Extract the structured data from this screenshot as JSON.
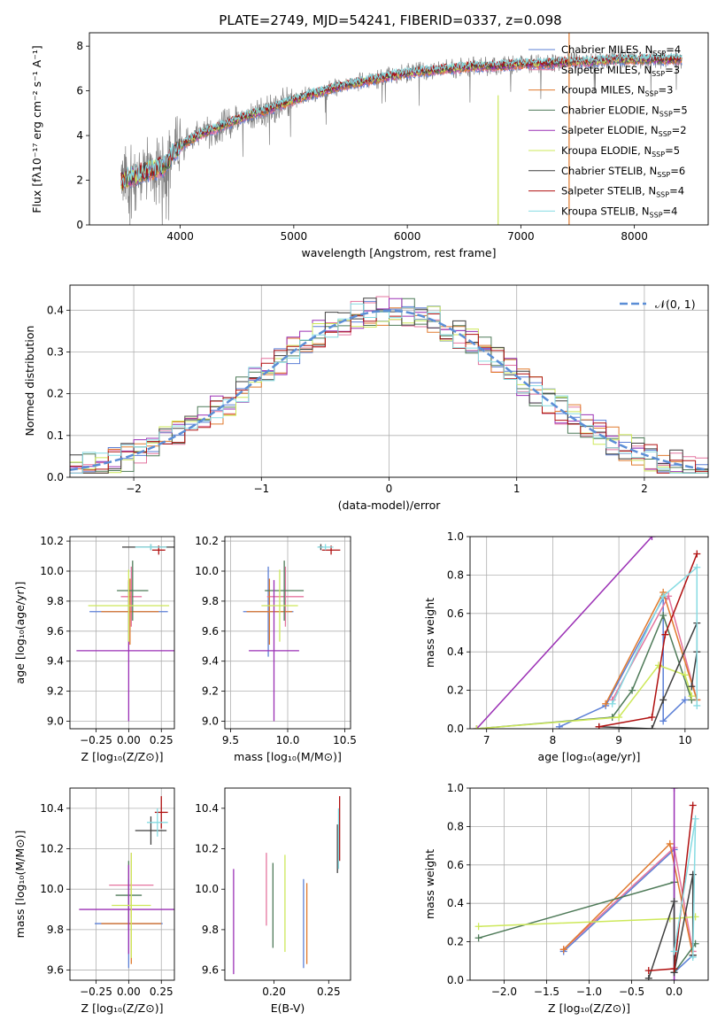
{
  "figure": {
    "title": "PLATE=2749, MJD=54241, FIBERID=0337, z=0.098"
  },
  "colors": {
    "Chabrier MILES": "#5b7fd6",
    "Salpeter MILES": "#e4759f",
    "Kroupa MILES": "#e07a2e",
    "Chabrier ELODIE": "#4e7a58",
    "Salpeter ELODIE": "#9b30b5",
    "Kroupa ELODIE": "#cde85a",
    "Chabrier STELIB": "#3f3f3f",
    "Salpeter STELIB": "#b01010",
    "Kroupa STELIB": "#86dbe2"
  },
  "chart_data": [
    {
      "type": "line",
      "title": "PLATE=2749, MJD=54241, FIBERID=0337, z=0.098",
      "xlabel": "wavelength [Angstrom, rest frame]",
      "ylabel": "Flux [fλ10⁻¹⁷ erg cm⁻² s⁻¹ A⁻¹]",
      "xlim": [
        3200,
        8650
      ],
      "ylim": [
        0,
        8.6
      ],
      "xticks": [
        4000,
        5000,
        6000,
        7000,
        8000
      ],
      "yticks": [
        0,
        2,
        4,
        6,
        8
      ],
      "legend_position": "right",
      "data_color": "#808080",
      "data_continuum": {
        "x": [
          3480,
          3550,
          3700,
          3850,
          3950,
          4050,
          4200,
          4400,
          4600,
          4800,
          5000,
          5200,
          5400,
          5600,
          5800,
          6000,
          6200,
          6400,
          6600,
          6800,
          7000,
          7200,
          7400,
          7600,
          7800,
          8000,
          8200,
          8400
        ],
        "y": [
          1.9,
          2.1,
          2.4,
          2.6,
          3.3,
          3.7,
          4.1,
          4.5,
          4.9,
          5.2,
          5.6,
          5.9,
          6.2,
          6.4,
          6.6,
          6.8,
          6.9,
          7.0,
          7.1,
          7.1,
          7.2,
          7.2,
          7.3,
          7.3,
          7.4,
          7.4,
          7.4,
          7.4
        ]
      },
      "series": [
        {
          "name": "Chabrier MILES, N_SSP=4",
          "legend_main": "Chabrier MILES, N",
          "legend_sub": "SSP",
          "legend_tail": "=4"
        },
        {
          "name": "Salpeter MILES, N_SSP=3",
          "legend_main": "Salpeter MILES, N",
          "legend_sub": "SSP",
          "legend_tail": "=3"
        },
        {
          "name": "Kroupa MILES, N_SSP=3",
          "legend_main": "Kroupa MILES, N",
          "legend_sub": "SSP",
          "legend_tail": "=3"
        },
        {
          "name": "Chabrier ELODIE, N_SSP=5",
          "legend_main": "Chabrier ELODIE, N",
          "legend_sub": "SSP",
          "legend_tail": "=5"
        },
        {
          "name": "Salpeter ELODIE, N_SSP=2",
          "legend_main": "Salpeter ELODIE, N",
          "legend_sub": "SSP",
          "legend_tail": "=2"
        },
        {
          "name": "Kroupa ELODIE, N_SSP=5",
          "legend_main": "Kroupa ELODIE, N",
          "legend_sub": "SSP",
          "legend_tail": "=5"
        },
        {
          "name": "Chabrier STELIB, N_SSP=6",
          "legend_main": "Chabrier STELIB, N",
          "legend_sub": "SSP",
          "legend_tail": "=6"
        },
        {
          "name": "Salpeter STELIB, N_SSP=4",
          "legend_main": "Salpeter STELIB, N",
          "legend_sub": "SSP",
          "legend_tail": "=4"
        },
        {
          "name": "Kroupa STELIB, N_SSP=4",
          "legend_main": "Kroupa STELIB, N",
          "legend_sub": "SSP",
          "legend_tail": "=4"
        }
      ]
    },
    {
      "type": "histogram",
      "xlabel": "(data-model)/error",
      "ylabel": "Normed distribution",
      "xlim": [
        -2.5,
        2.5
      ],
      "ylim": [
        0,
        0.46
      ],
      "xticks": [
        -2,
        -1,
        0,
        1,
        2
      ],
      "xticklabels": [
        "−2",
        "−1",
        "0",
        "1",
        "2"
      ],
      "yticks": [
        0,
        0.1,
        0.2,
        0.3,
        0.4
      ],
      "yticklabels": [
        "0.0",
        "0.1",
        "0.2",
        "0.3",
        "0.4"
      ],
      "grid": true,
      "reference_curve": {
        "label": "𝒩(0, 1)",
        "color": "#5b8ed6",
        "mu": 0,
        "sigma": 1
      },
      "bin_width": 0.1,
      "legend_position": "top-right"
    },
    {
      "type": "errorbar",
      "xlabel": "Z [log₁₀(Z/Z⊙)]",
      "ylabel": "age  [log₁₀(age/yr)]",
      "xlim": [
        -0.45,
        0.35
      ],
      "ylim": [
        8.95,
        10.23
      ],
      "xticks": [
        -0.25,
        0,
        0.25
      ],
      "xticklabels": [
        "−0.25",
        "0.00",
        "0.25"
      ],
      "yticks": [
        9.0,
        9.2,
        9.4,
        9.6,
        9.8,
        10.0,
        10.2
      ],
      "yticklabels": [
        "9.0",
        "9.2",
        "9.4",
        "9.6",
        "9.8",
        "10.0",
        "10.2"
      ],
      "grid": true,
      "points": [
        {
          "series": "Chabrier MILES",
          "x": 0.0,
          "xerr": 0.3,
          "y": 9.73,
          "yerr": 0.2
        },
        {
          "series": "Salpeter MILES",
          "x": 0.02,
          "xerr": 0.08,
          "y": 9.83,
          "yerr": 0.2
        },
        {
          "series": "Kroupa MILES",
          "x": 0.01,
          "xerr": 0.22,
          "y": 9.73,
          "yerr": 0.22
        },
        {
          "series": "Chabrier ELODIE",
          "x": 0.03,
          "xerr": 0.12,
          "y": 9.87,
          "yerr": 0.2
        },
        {
          "series": "Salpeter ELODIE",
          "x": 0.0,
          "xerr": 0.4,
          "y": 9.47,
          "yerr": 0.47
        },
        {
          "series": "Kroupa ELODIE",
          "x": 0.0,
          "xerr": 0.31,
          "y": 9.77,
          "yerr": 0.24
        },
        {
          "series": "Chabrier STELIB",
          "x": 0.17,
          "xerr": 0.22,
          "y": 10.16,
          "yerr": 0.02
        },
        {
          "series": "Salpeter STELIB",
          "x": 0.23,
          "xerr": 0.05,
          "y": 10.14,
          "yerr": 0.03
        },
        {
          "series": "Kroupa STELIB",
          "x": 0.17,
          "xerr": 0.12,
          "y": 10.16,
          "yerr": 0.02
        }
      ]
    },
    {
      "type": "errorbar",
      "xlabel": "mass [log₁₀(M/M⊙)]",
      "ylabel": "",
      "xlim": [
        9.45,
        10.55
      ],
      "ylim": [
        8.95,
        10.23
      ],
      "xticks": [
        9.5,
        10.0,
        10.5
      ],
      "xticklabels": [
        "9.5",
        "10.0",
        "10.5"
      ],
      "yticks": [
        9.0,
        9.2,
        9.4,
        9.6,
        9.8,
        10.0,
        10.2
      ],
      "yticklabels": [
        "9.0",
        "9.2",
        "9.4",
        "9.6",
        "9.8",
        "10.0",
        "10.2"
      ],
      "grid": true,
      "points": [
        {
          "series": "Chabrier MILES",
          "x": 9.83,
          "xerr": 0.22,
          "y": 9.73,
          "yerr": 0.3
        },
        {
          "series": "Salpeter MILES",
          "x": 9.98,
          "xerr": 0.16,
          "y": 9.83,
          "yerr": 0.2
        },
        {
          "series": "Kroupa MILES",
          "x": 9.84,
          "xerr": 0.2,
          "y": 9.73,
          "yerr": 0.22
        },
        {
          "series": "Chabrier ELODIE",
          "x": 9.97,
          "xerr": 0.17,
          "y": 9.87,
          "yerr": 0.2
        },
        {
          "series": "Salpeter ELODIE",
          "x": 9.88,
          "xerr": 0.22,
          "y": 9.47,
          "yerr": 0.47
        },
        {
          "series": "Kroupa ELODIE",
          "x": 9.93,
          "xerr": 0.16,
          "y": 9.77,
          "yerr": 0.24
        },
        {
          "series": "Chabrier STELIB",
          "x": 10.29,
          "xerr": 0.02,
          "y": 10.16,
          "yerr": 0.02
        },
        {
          "series": "Salpeter STELIB",
          "x": 10.38,
          "xerr": 0.08,
          "y": 10.14,
          "yerr": 0.03
        },
        {
          "series": "Kroupa STELIB",
          "x": 10.33,
          "xerr": 0.07,
          "y": 10.16,
          "yerr": 0.02
        }
      ]
    },
    {
      "type": "line",
      "xlabel": "age  [log₁₀(age/yr)]",
      "ylabel": "mass weight",
      "xlim": [
        6.75,
        10.35
      ],
      "ylim": [
        0,
        1.0
      ],
      "xticks": [
        7,
        8,
        9,
        10
      ],
      "xticklabels": [
        "7",
        "8",
        "9",
        "10"
      ],
      "yticks": [
        0,
        0.2,
        0.4,
        0.6,
        0.8,
        1.0
      ],
      "yticklabels": [
        "0.0",
        "0.2",
        "0.4",
        "0.6",
        "0.8",
        "1.0"
      ],
      "grid": true,
      "series": [
        {
          "name": "Chabrier MILES",
          "points": [
            [
              8.1,
              0.01
            ],
            [
              8.8,
              0.12
            ],
            [
              9.67,
              0.68
            ],
            [
              9.67,
              0.04
            ],
            [
              10.0,
              0.15
            ]
          ]
        },
        {
          "name": "Salpeter MILES",
          "points": [
            [
              8.9,
              0.15
            ],
            [
              9.75,
              0.69
            ],
            [
              10.18,
              0.15
            ]
          ]
        },
        {
          "name": "Kroupa MILES",
          "points": [
            [
              8.8,
              0.13
            ],
            [
              9.67,
              0.71
            ],
            [
              10.18,
              0.15
            ]
          ]
        },
        {
          "name": "Chabrier ELODIE",
          "points": [
            [
              6.85,
              0.0
            ],
            [
              8.9,
              0.06
            ],
            [
              9.2,
              0.2
            ],
            [
              9.67,
              0.59
            ],
            [
              10.1,
              0.15
            ]
          ]
        },
        {
          "name": "Salpeter ELODIE",
          "points": [
            [
              6.85,
              0.0
            ],
            [
              9.5,
              1.0
            ]
          ]
        },
        {
          "name": "Kroupa ELODIE",
          "points": [
            [
              6.85,
              0.0
            ],
            [
              9.0,
              0.06
            ],
            [
              9.6,
              0.33
            ],
            [
              10.0,
              0.28
            ],
            [
              10.1,
              0.17
            ]
          ]
        },
        {
          "name": "Chabrier STELIB",
          "points": [
            [
              8.7,
              0.01
            ],
            [
              9.5,
              0.0
            ],
            [
              9.67,
              0.15
            ],
            [
              10.18,
              0.55
            ],
            [
              10.18,
              0.4
            ],
            [
              10.1,
              0.22
            ]
          ]
        },
        {
          "name": "Salpeter STELIB",
          "points": [
            [
              8.7,
              0.01
            ],
            [
              9.5,
              0.06
            ],
            [
              9.7,
              0.49
            ],
            [
              10.18,
              0.91
            ]
          ]
        },
        {
          "name": "Kroupa STELIB",
          "points": [
            [
              8.9,
              0.13
            ],
            [
              9.67,
              0.69
            ],
            [
              10.18,
              0.84
            ],
            [
              10.18,
              0.12
            ]
          ]
        }
      ]
    },
    {
      "type": "errorbar",
      "xlabel": "Z [log₁₀(Z/Z⊙)]",
      "ylabel": "mass [log₁₀(M/M⊙)]",
      "xlim": [
        -0.45,
        0.35
      ],
      "ylim": [
        9.55,
        10.5
      ],
      "xticks": [
        -0.25,
        0,
        0.25
      ],
      "xticklabels": [
        "−0.25",
        "0.00",
        "0.25"
      ],
      "yticks": [
        9.6,
        9.8,
        10.0,
        10.2,
        10.4
      ],
      "yticklabels": [
        "9.6",
        "9.8",
        "10.0",
        "10.2",
        "10.4"
      ],
      "grid": true,
      "points": [
        {
          "series": "Chabrier MILES",
          "x": 0.0,
          "xerr": 0.26,
          "y": 9.83,
          "yerr": 0.22
        },
        {
          "series": "Salpeter MILES",
          "x": 0.02,
          "xerr": 0.17,
          "y": 10.02,
          "yerr": 0.16
        },
        {
          "series": "Kroupa MILES",
          "x": 0.02,
          "xerr": 0.23,
          "y": 9.83,
          "yerr": 0.2
        },
        {
          "series": "Chabrier ELODIE",
          "x": 0.0,
          "xerr": 0.1,
          "y": 9.97,
          "yerr": 0.17
        },
        {
          "series": "Salpeter ELODIE",
          "x": 0.0,
          "xerr": 0.38,
          "y": 9.9,
          "yerr": 0.22
        },
        {
          "series": "Kroupa ELODIE",
          "x": 0.02,
          "xerr": 0.15,
          "y": 9.92,
          "yerr": 0.26
        },
        {
          "series": "Chabrier STELIB",
          "x": 0.17,
          "xerr": 0.12,
          "y": 10.29,
          "yerr": 0.07
        },
        {
          "series": "Salpeter STELIB",
          "x": 0.25,
          "xerr": 0.05,
          "y": 10.38,
          "yerr": 0.08
        },
        {
          "series": "Kroupa STELIB",
          "x": 0.22,
          "xerr": 0.08,
          "y": 10.33,
          "yerr": 0.07
        }
      ]
    },
    {
      "type": "errorbar",
      "xlabel": "E(B-V)",
      "ylabel": "",
      "xlim": [
        0.155,
        0.27
      ],
      "ylim": [
        9.55,
        10.5
      ],
      "xticks": [
        0.2,
        0.25
      ],
      "xticklabels": [
        "0.20",
        "0.25"
      ],
      "yticks": [
        9.6,
        9.8,
        10.0,
        10.2,
        10.4
      ],
      "yticklabels": [
        "9.6",
        "9.8",
        "10.0",
        "10.2",
        "10.4"
      ],
      "grid": false,
      "points": [
        {
          "series": "Chabrier MILES",
          "x": 0.227,
          "y": 9.83,
          "yerr": 0.22
        },
        {
          "series": "Salpeter MILES",
          "x": 0.193,
          "y": 10.0,
          "yerr": 0.18
        },
        {
          "series": "Kroupa MILES",
          "x": 0.23,
          "y": 9.83,
          "yerr": 0.2
        },
        {
          "series": "Chabrier ELODIE",
          "x": 0.199,
          "y": 9.92,
          "yerr": 0.21
        },
        {
          "series": "Salpeter ELODIE",
          "x": 0.163,
          "y": 9.84,
          "yerr": 0.26
        },
        {
          "series": "Kroupa ELODIE",
          "x": 0.21,
          "y": 9.93,
          "yerr": 0.24
        },
        {
          "series": "Chabrier STELIB",
          "x": 0.258,
          "y": 10.2,
          "yerr": 0.12
        },
        {
          "series": "Salpeter STELIB",
          "x": 0.26,
          "y": 10.3,
          "yerr": 0.16
        },
        {
          "series": "Kroupa STELIB",
          "x": 0.259,
          "y": 10.25,
          "yerr": 0.15
        }
      ]
    },
    {
      "type": "line",
      "xlabel": "Z [log₁₀(Z/Z⊙)]",
      "ylabel": "mass weight",
      "xlim": [
        -2.4,
        0.4
      ],
      "ylim": [
        0,
        1.0
      ],
      "xticks": [
        -2.0,
        -1.5,
        -1.0,
        -0.5,
        0.0
      ],
      "xticklabels": [
        "−2.0",
        "−1.5",
        "−1.0",
        "−0.5",
        "0.0"
      ],
      "yticks": [
        0,
        0.2,
        0.4,
        0.6,
        0.8,
        1.0
      ],
      "yticklabels": [
        "0.0",
        "0.2",
        "0.4",
        "0.6",
        "0.8",
        "1.0"
      ],
      "grid": true,
      "series": [
        {
          "name": "Chabrier MILES",
          "points": [
            [
              -1.3,
              0.15
            ],
            [
              0.0,
              0.68
            ],
            [
              0.0,
              0.04
            ],
            [
              0.22,
              0.13
            ]
          ]
        },
        {
          "name": "Salpeter MILES",
          "points": [
            [
              -1.3,
              0.16
            ],
            [
              0.0,
              0.69
            ],
            [
              0.22,
              0.15
            ]
          ]
        },
        {
          "name": "Kroupa MILES",
          "points": [
            [
              -1.3,
              0.16
            ],
            [
              -0.05,
              0.71
            ],
            [
              0.22,
              0.13
            ]
          ]
        },
        {
          "name": "Chabrier ELODIE",
          "points": [
            [
              -2.3,
              0.22
            ],
            [
              0.0,
              0.51
            ],
            [
              0.0,
              0.04
            ],
            [
              0.25,
              0.19
            ]
          ]
        },
        {
          "name": "Salpeter ELODIE",
          "points": [
            [
              0.0,
              0.0
            ],
            [
              0.0,
              1.0
            ]
          ]
        },
        {
          "name": "Kroupa ELODIE",
          "points": [
            [
              -2.3,
              0.28
            ],
            [
              -0.05,
              0.32
            ],
            [
              0.25,
              0.33
            ]
          ]
        },
        {
          "name": "Chabrier STELIB",
          "points": [
            [
              -0.3,
              0.01
            ],
            [
              0.0,
              0.41
            ],
            [
              0.0,
              0.04
            ],
            [
              0.22,
              0.55
            ],
            [
              0.22,
              0.13
            ]
          ]
        },
        {
          "name": "Salpeter STELIB",
          "points": [
            [
              -0.3,
              0.05
            ],
            [
              0.0,
              0.06
            ],
            [
              0.22,
              0.91
            ]
          ]
        },
        {
          "name": "Kroupa STELIB",
          "points": [
            [
              0.0,
              0.15
            ],
            [
              0.25,
              0.84
            ],
            [
              0.22,
              0.12
            ]
          ]
        }
      ]
    }
  ]
}
